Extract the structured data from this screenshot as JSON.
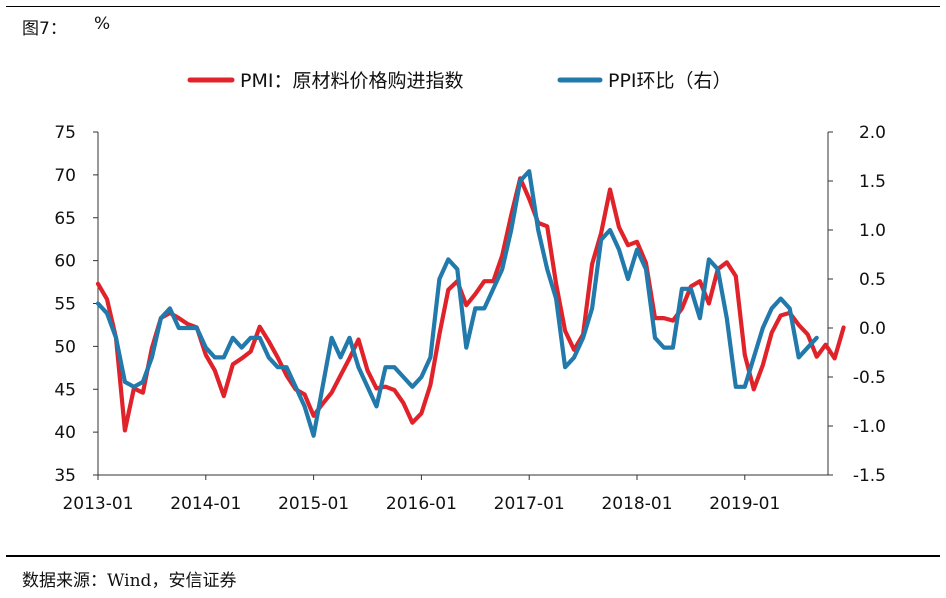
{
  "figure": {
    "label": "图7：",
    "unit": "%",
    "source": "数据来源：Wind，安信证券"
  },
  "chart_data": {
    "type": "line",
    "x_tick_labels": [
      "2013-01",
      "2014-01",
      "2015-01",
      "2016-01",
      "2017-01",
      "2018-01",
      "2019-01"
    ],
    "y_left": {
      "range": [
        35,
        75
      ],
      "ticks": [
        "35",
        "40",
        "45",
        "50",
        "55",
        "60",
        "65",
        "70",
        "75"
      ]
    },
    "y_right": {
      "range": [
        -1.5,
        2.0
      ],
      "ticks": [
        "-1.5",
        "-1.0",
        "-0.5",
        "0.0",
        "0.5",
        "1.0",
        "1.5",
        "2.0"
      ]
    },
    "grid": false,
    "legend_position": "top",
    "series": [
      {
        "name": "PMI：原材料价格购进指数",
        "axis": "left",
        "color": "#e0232a",
        "start": "2013-01",
        "values": [
          57.3,
          55.5,
          51.0,
          40.2,
          45.1,
          44.6,
          49.8,
          53.3,
          53.9,
          53.3,
          52.6,
          52.2,
          49.0,
          47.2,
          44.2,
          47.9,
          48.6,
          49.4,
          52.3,
          50.6,
          48.7,
          46.6,
          45.0,
          44.4,
          41.9,
          43.3,
          44.6,
          46.6,
          48.6,
          50.8,
          47.2,
          45.1,
          45.3,
          44.9,
          43.4,
          41.1,
          42.2,
          45.5,
          51.4,
          56.6,
          57.6,
          54.8,
          56.1,
          57.6,
          57.6,
          60.6,
          65.3,
          69.6,
          67.2,
          64.4,
          64.0,
          57.3,
          51.8,
          49.6,
          51.4,
          59.6,
          63.2,
          68.3,
          63.9,
          61.8,
          62.2,
          59.7,
          53.3,
          53.3,
          53.0,
          54.4,
          57.0,
          57.6,
          55.0,
          59.0,
          59.8,
          58.2,
          49.0,
          45.0,
          47.8,
          51.6,
          53.6,
          53.9,
          52.5,
          51.4,
          48.8,
          50.2,
          48.6,
          52.2
        ]
      },
      {
        "name": "PPI环比（右）",
        "axis": "right",
        "color": "#2279ab",
        "start": "2013-01",
        "values": [
          0.25,
          0.15,
          -0.1,
          -0.55,
          -0.6,
          -0.55,
          -0.3,
          0.1,
          0.2,
          0.0,
          0.0,
          0.0,
          -0.2,
          -0.3,
          -0.3,
          -0.1,
          -0.2,
          -0.1,
          -0.1,
          -0.3,
          -0.4,
          -0.4,
          -0.6,
          -0.8,
          -1.1,
          -0.6,
          -0.1,
          -0.3,
          -0.1,
          -0.4,
          -0.6,
          -0.8,
          -0.4,
          -0.4,
          -0.5,
          -0.6,
          -0.5,
          -0.3,
          0.5,
          0.7,
          0.6,
          -0.2,
          0.2,
          0.2,
          0.4,
          0.6,
          1.0,
          1.5,
          1.6,
          1.0,
          0.6,
          0.3,
          -0.4,
          -0.3,
          -0.1,
          0.2,
          0.9,
          1.0,
          0.8,
          0.5,
          0.8,
          0.6,
          -0.1,
          -0.2,
          -0.2,
          0.4,
          0.4,
          0.1,
          0.7,
          0.6,
          0.1,
          -0.6,
          -0.6,
          -0.3,
          0.0,
          0.2,
          0.3,
          0.2,
          -0.3,
          -0.2,
          -0.1
        ]
      }
    ]
  }
}
